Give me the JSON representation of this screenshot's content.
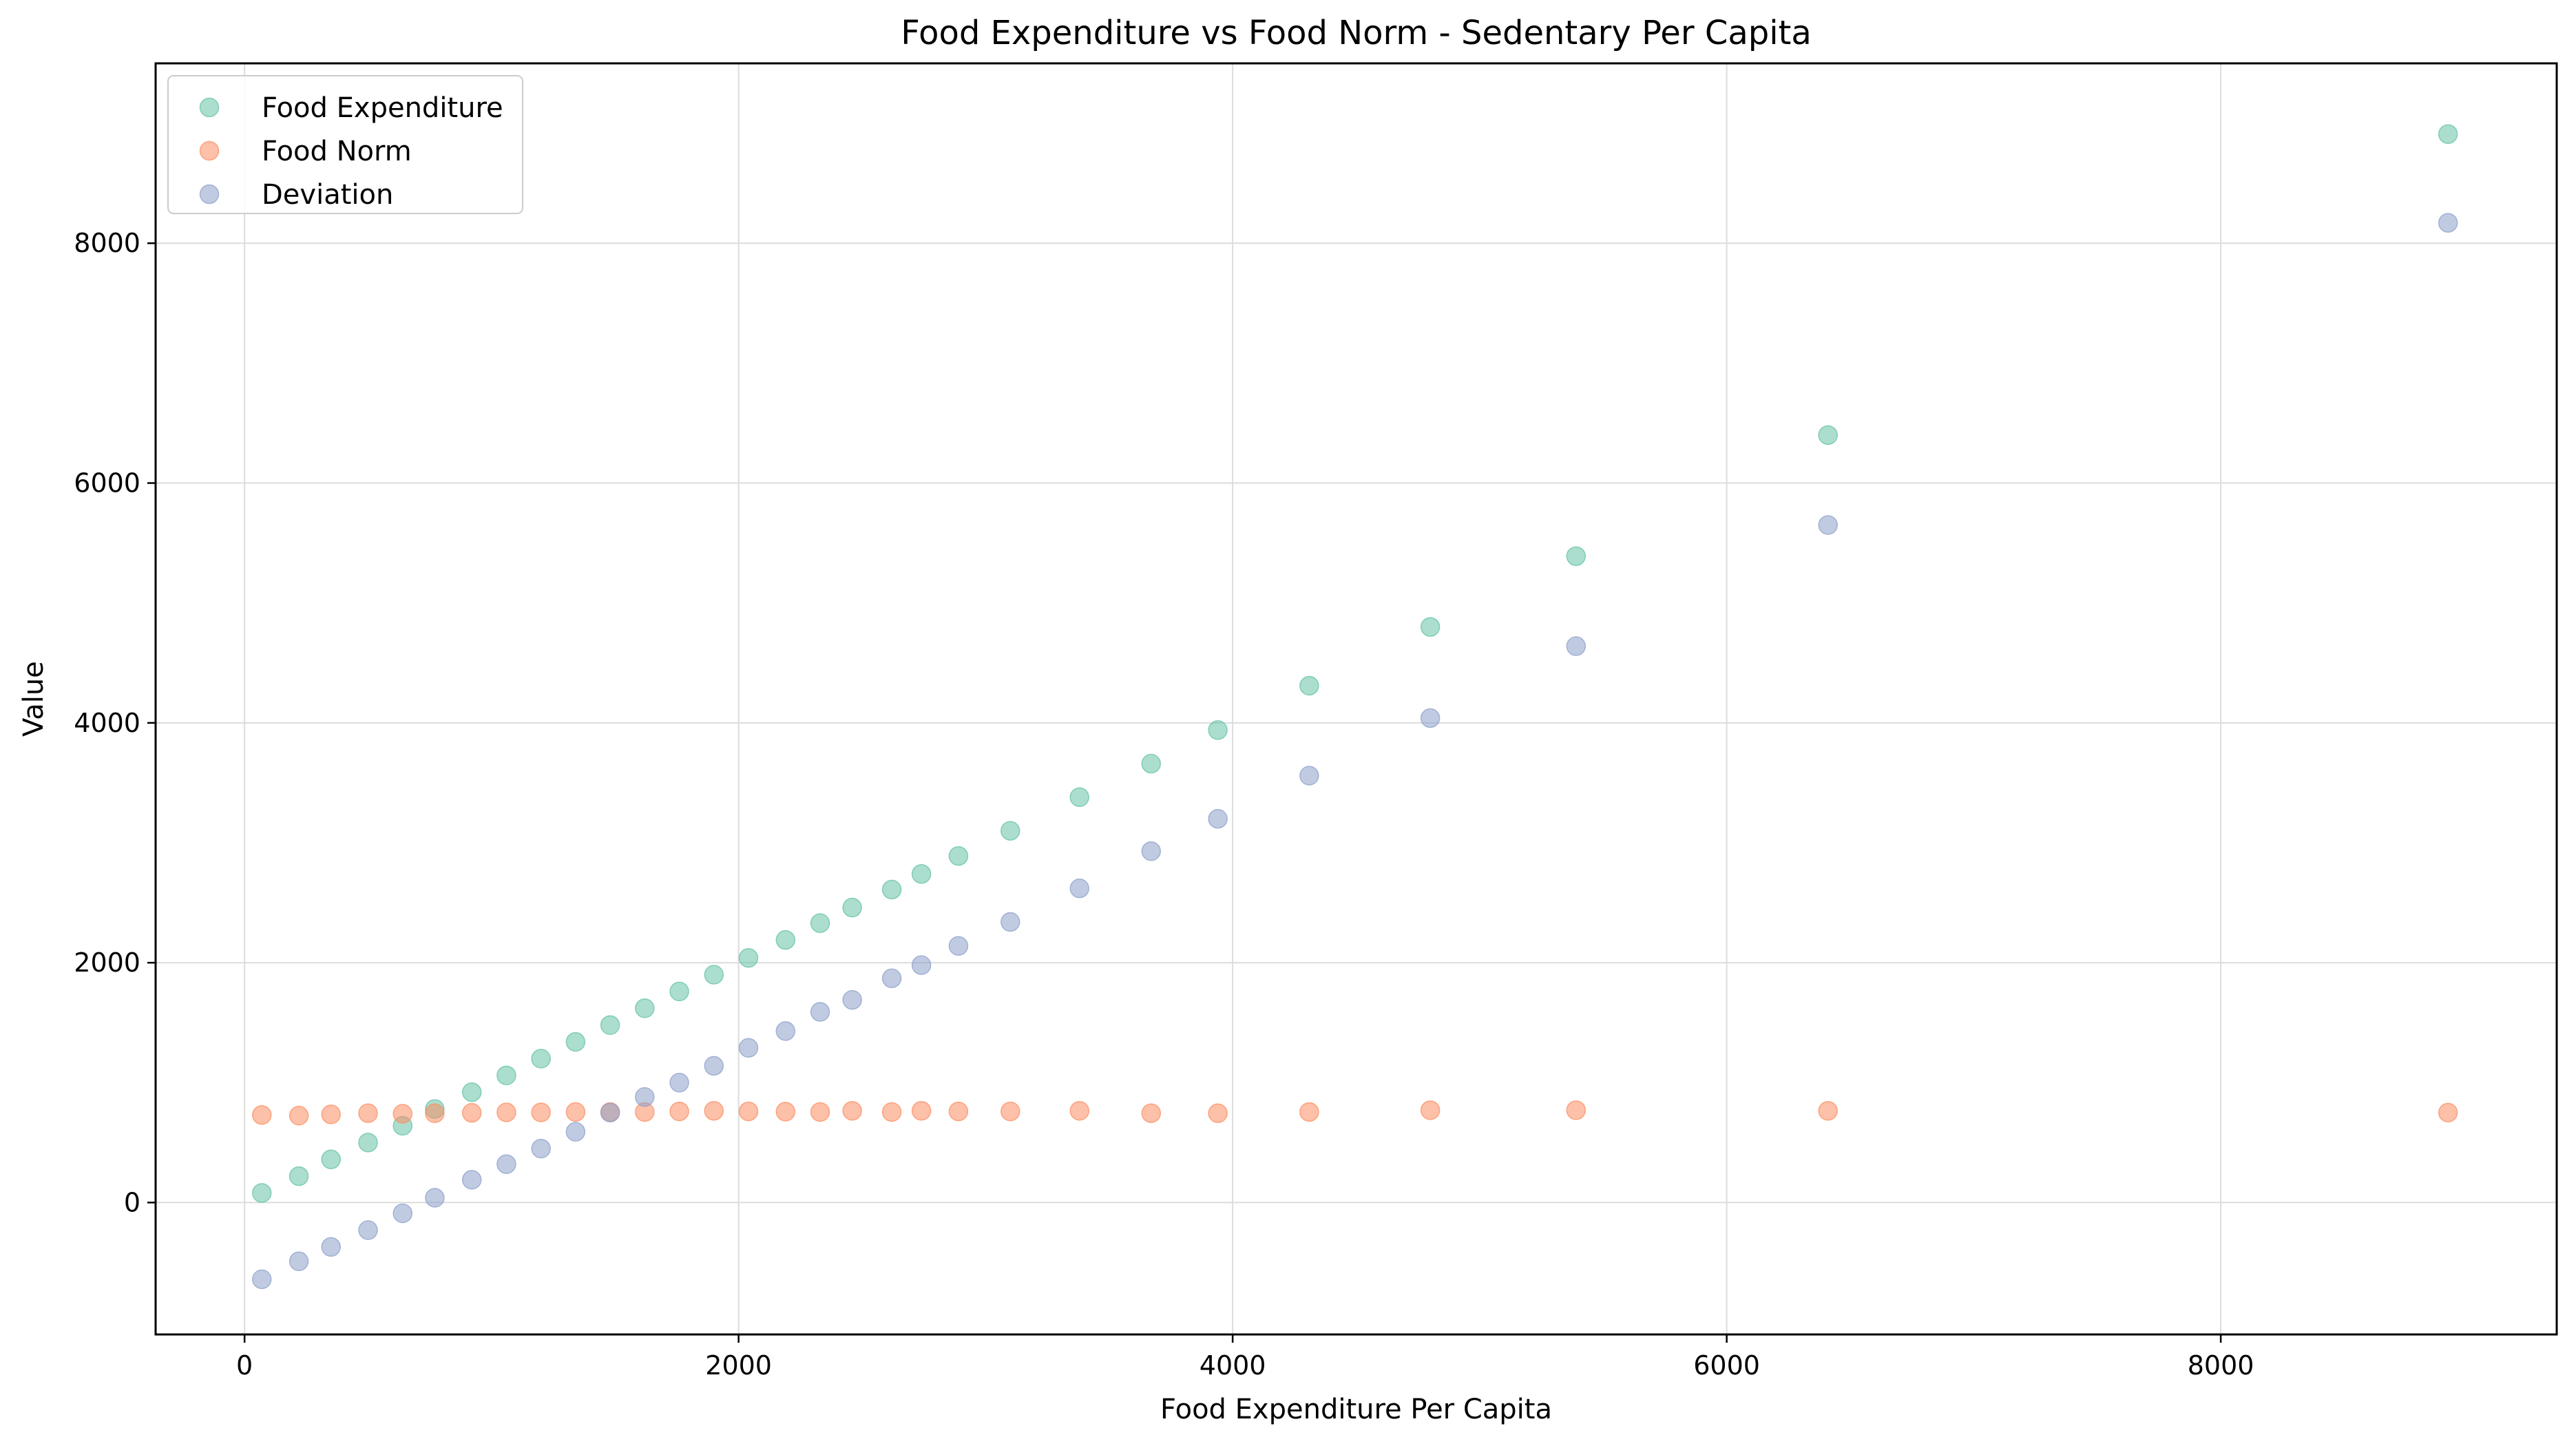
{
  "chart_data": {
    "type": "scatter",
    "title": "Food Expenditure vs Food Norm - Sedentary Per Capita",
    "xlabel": "Food Expenditure Per Capita",
    "ylabel": "Value",
    "xlim": [
      -360,
      9360
    ],
    "ylim": [
      -1100,
      9500
    ],
    "xticks": [
      0,
      2000,
      4000,
      6000,
      8000
    ],
    "yticks": [
      0,
      2000,
      4000,
      6000,
      8000
    ],
    "grid": true,
    "legend_position": "upper-left",
    "x": [
      70,
      220,
      350,
      500,
      640,
      770,
      920,
      1060,
      1200,
      1340,
      1480,
      1620,
      1760,
      1900,
      2040,
      2190,
      2330,
      2460,
      2620,
      2740,
      2890,
      3100,
      3380,
      3670,
      3940,
      4310,
      4800,
      5390,
      6410,
      8920
    ],
    "series": [
      {
        "name": "Food Expenditure",
        "color": "#66c2a5",
        "values": [
          80,
          220,
          360,
          500,
          640,
          780,
          920,
          1060,
          1200,
          1340,
          1480,
          1620,
          1760,
          1900,
          2040,
          2190,
          2330,
          2460,
          2610,
          2740,
          2890,
          3100,
          3380,
          3660,
          3940,
          4310,
          4800,
          5390,
          6400,
          8910
        ]
      },
      {
        "name": "Food Norm",
        "color": "#fc8d62",
        "values": [
          730,
          725,
          735,
          745,
          740,
          745,
          748,
          752,
          752,
          755,
          755,
          755,
          760,
          765,
          760,
          758,
          755,
          765,
          755,
          765,
          760,
          760,
          765,
          745,
          745,
          755,
          770,
          770,
          765,
          750
        ]
      },
      {
        "name": "Deviation",
        "color": "#8da0cb",
        "values": [
          -640,
          -490,
          -370,
          -230,
          -90,
          40,
          190,
          320,
          450,
          590,
          750,
          880,
          1000,
          1140,
          1290,
          1430,
          1590,
          1690,
          1870,
          1980,
          2140,
          2340,
          2620,
          2930,
          3200,
          3560,
          4040,
          4640,
          5650,
          8170
        ]
      }
    ]
  }
}
